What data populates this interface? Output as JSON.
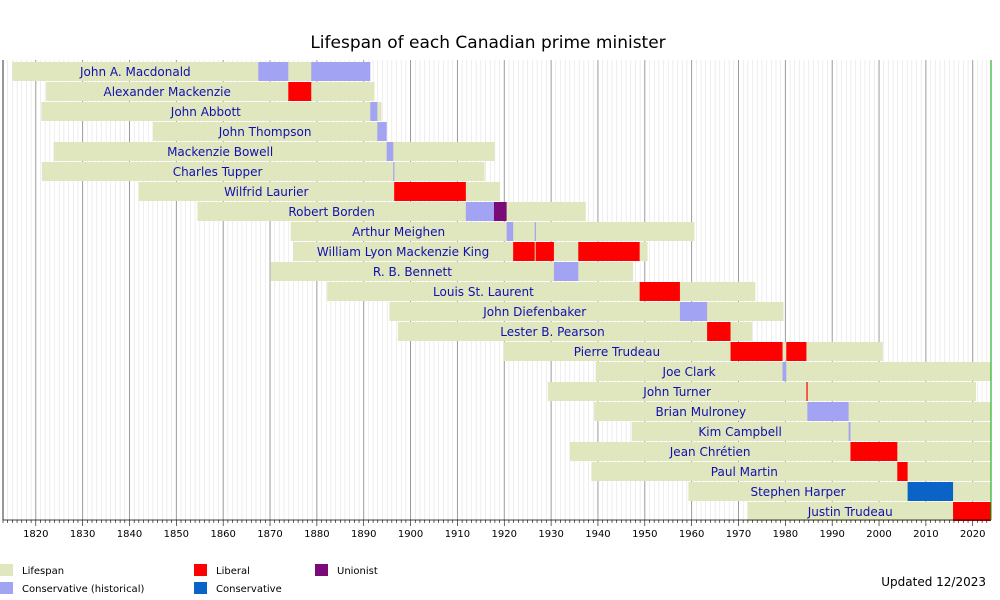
{
  "chart_data": {
    "type": "timeline",
    "title": "Lifespan of each Canadian prime minister",
    "xlim": [
      1813,
      2023.9
    ],
    "x_ticks": [
      1820,
      1830,
      1840,
      1850,
      1860,
      1870,
      1880,
      1890,
      1900,
      1910,
      1920,
      1930,
      1940,
      1950,
      1960,
      1970,
      1980,
      1990,
      2000,
      2010,
      2020
    ],
    "grid": "vertical, every year (minor) and every 10 years (major)",
    "legend_position": "bottom-left",
    "colors": {
      "Lifespan": "#e0e6bd",
      "Conservative (historical)": "#a3a3f4",
      "Liberal": "#ff0000",
      "Conservative": "#0a64c8",
      "Unionist": "#7a0a78"
    },
    "legend": [
      {
        "label": "Lifespan",
        "key": "Lifespan"
      },
      {
        "label": "Conservative (historical)",
        "key": "Conservative (historical)"
      },
      {
        "label": "Liberal",
        "key": "Liberal"
      },
      {
        "label": "Conservative",
        "key": "Conservative"
      },
      {
        "label": "Unionist",
        "key": "Unionist"
      }
    ],
    "prime_ministers": [
      {
        "name": "John A. Macdonald",
        "birth": 1815.0,
        "death": 1891.4,
        "terms": [
          {
            "start": 1867.5,
            "end": 1873.9,
            "party": "Conservative (historical)"
          },
          {
            "start": 1878.8,
            "end": 1891.4,
            "party": "Conservative (historical)"
          }
        ]
      },
      {
        "name": "Alexander Mackenzie",
        "birth": 1822.2,
        "death": 1892.3,
        "terms": [
          {
            "start": 1873.9,
            "end": 1878.8,
            "party": "Liberal"
          }
        ]
      },
      {
        "name": "John Abbott",
        "birth": 1821.2,
        "death": 1893.8,
        "terms": [
          {
            "start": 1891.4,
            "end": 1892.9,
            "party": "Conservative (historical)"
          }
        ]
      },
      {
        "name": "John Thompson",
        "birth": 1845.0,
        "death": 1894.9,
        "terms": [
          {
            "start": 1892.9,
            "end": 1894.9,
            "party": "Conservative (historical)"
          }
        ]
      },
      {
        "name": "Mackenzie Bowell",
        "birth": 1823.8,
        "death": 1917.9,
        "terms": [
          {
            "start": 1894.9,
            "end": 1896.3,
            "party": "Conservative (historical)"
          }
        ]
      },
      {
        "name": "Charles Tupper",
        "birth": 1821.3,
        "death": 1915.8,
        "terms": [
          {
            "start": 1896.3,
            "end": 1896.5,
            "party": "Conservative (historical)"
          }
        ]
      },
      {
        "name": "Wilfrid Laurier",
        "birth": 1841.9,
        "death": 1919.1,
        "terms": [
          {
            "start": 1896.5,
            "end": 1911.8,
            "party": "Liberal"
          }
        ]
      },
      {
        "name": "Robert Borden",
        "birth": 1854.5,
        "death": 1937.4,
        "terms": [
          {
            "start": 1911.8,
            "end": 1917.8,
            "party": "Conservative (historical)"
          },
          {
            "start": 1917.8,
            "end": 1920.5,
            "party": "Unionist"
          }
        ]
      },
      {
        "name": "Arthur Meighen",
        "birth": 1874.4,
        "death": 1960.6,
        "terms": [
          {
            "start": 1920.5,
            "end": 1921.9,
            "party": "Conservative (historical)"
          },
          {
            "start": 1926.5,
            "end": 1926.7,
            "party": "Conservative (historical)"
          }
        ]
      },
      {
        "name": "William Lyon Mackenzie King",
        "birth": 1874.9,
        "death": 1950.6,
        "terms": [
          {
            "start": 1921.9,
            "end": 1926.5,
            "party": "Liberal"
          },
          {
            "start": 1926.7,
            "end": 1930.6,
            "party": "Liberal"
          },
          {
            "start": 1935.8,
            "end": 1948.9,
            "party": "Liberal"
          }
        ]
      },
      {
        "name": "R. B. Bennett",
        "birth": 1870.2,
        "death": 1947.5,
        "terms": [
          {
            "start": 1930.6,
            "end": 1935.8,
            "party": "Conservative (historical)"
          }
        ]
      },
      {
        "name": "Louis St. Laurent",
        "birth": 1882.2,
        "death": 1973.6,
        "terms": [
          {
            "start": 1948.9,
            "end": 1957.5,
            "party": "Liberal"
          }
        ]
      },
      {
        "name": "John Diefenbaker",
        "birth": 1895.5,
        "death": 1979.6,
        "terms": [
          {
            "start": 1957.5,
            "end": 1963.3,
            "party": "Conservative (historical)"
          }
        ]
      },
      {
        "name": "Lester B. Pearson",
        "birth": 1897.3,
        "death": 1972.9,
        "terms": [
          {
            "start": 1963.3,
            "end": 1968.3,
            "party": "Liberal"
          }
        ]
      },
      {
        "name": "Pierre Trudeau",
        "birth": 1919.8,
        "death": 2000.8,
        "terms": [
          {
            "start": 1968.3,
            "end": 1979.4,
            "party": "Liberal"
          },
          {
            "start": 1980.2,
            "end": 1984.5,
            "party": "Liberal"
          }
        ]
      },
      {
        "name": "Joe Clark",
        "birth": 1939.5,
        "death": 2023.9,
        "terms": [
          {
            "start": 1979.4,
            "end": 1980.2,
            "party": "Conservative (historical)"
          }
        ]
      },
      {
        "name": "John Turner",
        "birth": 1929.3,
        "death": 2020.7,
        "terms": [
          {
            "start": 1984.5,
            "end": 1984.7,
            "party": "Liberal"
          }
        ]
      },
      {
        "name": "Brian Mulroney",
        "birth": 1939.2,
        "death": 2023.9,
        "terms": [
          {
            "start": 1984.7,
            "end": 1993.5,
            "party": "Conservative (historical)"
          }
        ]
      },
      {
        "name": "Kim Campbell",
        "birth": 1947.2,
        "death": 2023.9,
        "terms": [
          {
            "start": 1993.5,
            "end": 1993.9,
            "party": "Conservative (historical)"
          }
        ]
      },
      {
        "name": "Jean Chrétien",
        "birth": 1934.0,
        "death": 2023.9,
        "terms": [
          {
            "start": 1993.9,
            "end": 2003.9,
            "party": "Liberal"
          }
        ]
      },
      {
        "name": "Paul Martin",
        "birth": 1938.6,
        "death": 2023.9,
        "terms": [
          {
            "start": 2003.9,
            "end": 2006.1,
            "party": "Liberal"
          }
        ]
      },
      {
        "name": "Stephen Harper",
        "birth": 1959.3,
        "death": 2023.9,
        "terms": [
          {
            "start": 2006.1,
            "end": 2015.8,
            "party": "Conservative"
          }
        ]
      },
      {
        "name": "Justin Trudeau",
        "birth": 1971.9,
        "death": 2023.9,
        "terms": [
          {
            "start": 2015.8,
            "end": 2023.9,
            "party": "Liberal"
          }
        ]
      }
    ],
    "footnote": "Updated 12/2023"
  }
}
